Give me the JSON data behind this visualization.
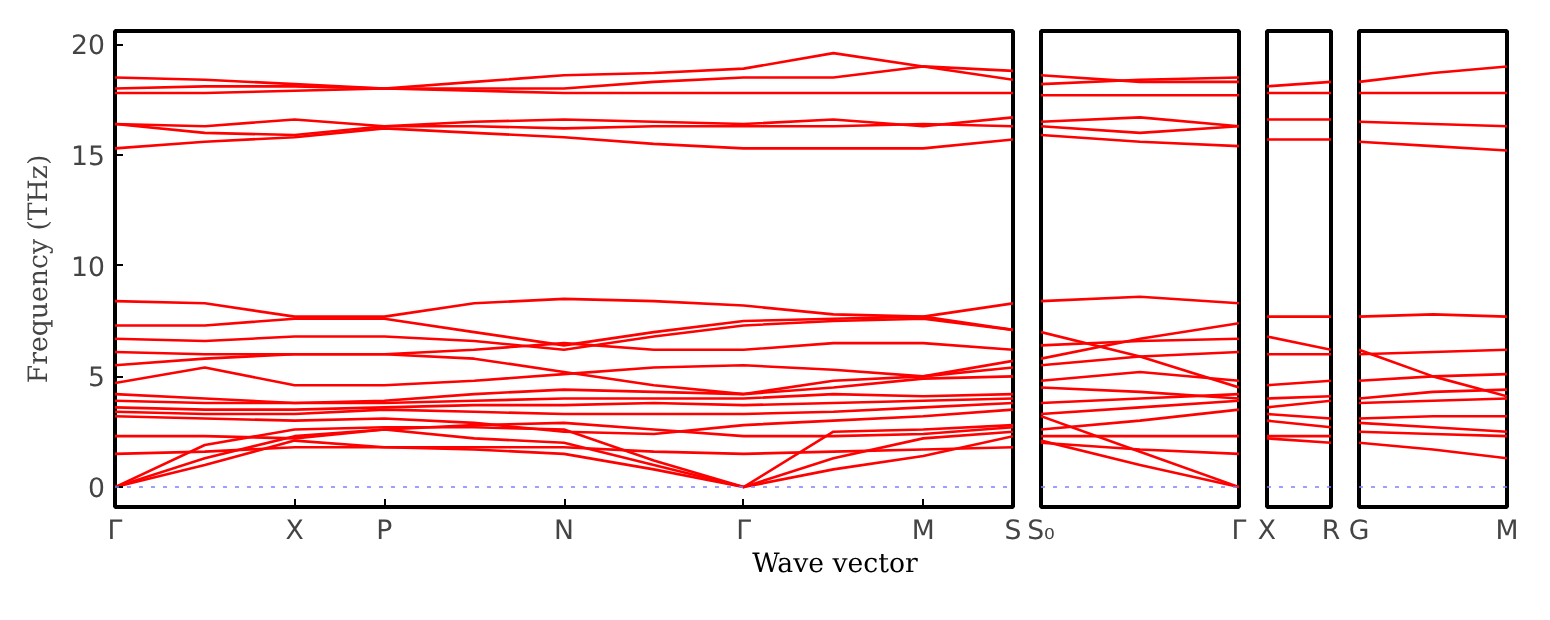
{
  "chart_data": [
    {
      "type": "line",
      "ylabel": "Frequency (THz)",
      "xlabel": "Wave vector",
      "ylim": [
        -0.9,
        20.6
      ],
      "yticks": [
        0,
        5,
        10,
        15,
        20
      ],
      "grid": false,
      "line_style": "solid",
      "ref_lines": [
        {
          "axis": "y",
          "value": 0,
          "label": null,
          "color": "#8080ff",
          "line_style": "dotted"
        }
      ],
      "categories": [
        "Γ",
        null,
        "X",
        "P",
        null,
        "N",
        null,
        "Γ",
        null,
        "M",
        "S"
      ],
      "series": [
        {
          "color": "#ff0000",
          "values": [
            0,
            1.0,
            2.1,
            1.8,
            1.7,
            1.5,
            0.8,
            0,
            0.8,
            1.4,
            2.3
          ]
        },
        {
          "color": "#ff0000",
          "values": [
            0,
            1.3,
            2.3,
            2.6,
            2.2,
            2.0,
            1.0,
            0,
            1.3,
            2.2,
            2.5
          ]
        },
        {
          "color": "#ff0000",
          "values": [
            0,
            1.9,
            2.6,
            2.7,
            2.7,
            2.6,
            1.2,
            0,
            2.5,
            2.6,
            2.8
          ]
        },
        {
          "color": "#ff0000",
          "values": [
            1.5,
            1.6,
            1.8,
            1.8,
            1.8,
            1.8,
            1.6,
            1.5,
            1.6,
            1.7,
            1.8
          ]
        },
        {
          "color": "#ff0000",
          "values": [
            2.3,
            2.3,
            2.2,
            2.6,
            2.8,
            2.9,
            2.6,
            2.3,
            2.3,
            2.4,
            2.7
          ]
        },
        {
          "color": "#ff0000",
          "values": [
            3.2,
            3.1,
            3.0,
            3.1,
            2.9,
            2.5,
            2.4,
            2.8,
            3.0,
            3.2,
            3.5
          ]
        },
        {
          "color": "#ff0000",
          "values": [
            3.4,
            3.3,
            3.3,
            3.5,
            3.4,
            3.3,
            3.3,
            3.3,
            3.4,
            3.6,
            3.8
          ]
        },
        {
          "color": "#ff0000",
          "values": [
            3.6,
            3.5,
            3.5,
            3.6,
            3.7,
            3.7,
            3.8,
            3.7,
            3.8,
            3.9,
            4.0
          ]
        },
        {
          "color": "#ff0000",
          "values": [
            3.9,
            3.8,
            3.8,
            3.8,
            3.9,
            4.0,
            4.0,
            4.0,
            4.2,
            4.1,
            4.2
          ]
        },
        {
          "color": "#ff0000",
          "values": [
            4.2,
            4.0,
            3.8,
            3.9,
            4.2,
            4.4,
            4.3,
            4.2,
            4.5,
            4.9,
            5.0
          ]
        },
        {
          "color": "#ff0000",
          "values": [
            4.7,
            5.4,
            4.6,
            4.6,
            4.8,
            5.1,
            5.4,
            5.5,
            5.3,
            5.0,
            5.4
          ]
        },
        {
          "color": "#ff0000",
          "values": [
            5.5,
            5.8,
            6.0,
            6.0,
            6.2,
            6.5,
            6.2,
            6.2,
            6.5,
            6.5,
            6.2
          ]
        },
        {
          "color": "#ff0000",
          "values": [
            6.1,
            6.0,
            6.0,
            6.0,
            5.8,
            5.2,
            4.6,
            4.2,
            4.8,
            5.0,
            5.7
          ]
        },
        {
          "color": "#ff0000",
          "values": [
            6.7,
            6.6,
            6.8,
            6.8,
            6.6,
            6.2,
            6.8,
            7.3,
            7.5,
            7.6,
            7.1
          ]
        },
        {
          "color": "#ff0000",
          "values": [
            7.3,
            7.3,
            7.6,
            7.6,
            7.0,
            6.4,
            7.0,
            7.5,
            7.6,
            7.7,
            8.3
          ]
        },
        {
          "color": "#ff0000",
          "values": [
            8.4,
            8.3,
            7.7,
            7.7,
            8.3,
            8.5,
            8.4,
            8.2,
            7.8,
            7.7,
            7.1
          ]
        },
        {
          "color": "#ff0000",
          "values": [
            18.5,
            18.4,
            18.2,
            18.0,
            18.3,
            18.6,
            18.7,
            18.9,
            19.6,
            19.0,
            18.8
          ]
        },
        {
          "color": "#ff0000",
          "values": [
            18.0,
            18.1,
            18.1,
            18.0,
            18.0,
            18.0,
            18.3,
            18.5,
            18.5,
            19.0,
            18.4
          ]
        },
        {
          "color": "#ff0000",
          "values": [
            17.8,
            17.8,
            17.9,
            18.0,
            17.9,
            17.8,
            17.8,
            17.8,
            17.8,
            17.8,
            17.8
          ]
        },
        {
          "color": "#ff0000",
          "values": [
            16.4,
            16.3,
            16.6,
            16.3,
            16.5,
            16.6,
            16.5,
            16.4,
            16.6,
            16.3,
            16.7
          ]
        },
        {
          "color": "#ff0000",
          "values": [
            16.4,
            16.0,
            15.9,
            16.3,
            16.3,
            16.2,
            16.3,
            16.3,
            16.3,
            16.4,
            16.3
          ]
        },
        {
          "color": "#ff0000",
          "values": [
            15.3,
            15.6,
            15.8,
            16.2,
            16.0,
            15.8,
            15.5,
            15.3,
            15.3,
            15.3,
            15.7
          ]
        }
      ]
    },
    {
      "type": "line",
      "ylim": [
        -0.9,
        20.6
      ],
      "tick_labels": "x",
      "grid": false,
      "line_style": "solid",
      "ref_lines": [
        {
          "axis": "y",
          "value": 0,
          "label": null,
          "color": "#8080ff",
          "line_style": "dotted"
        }
      ],
      "categories": [
        "S₀",
        null,
        "Γ"
      ],
      "series": [
        {
          "color": "#ff0000",
          "values": [
            8.4,
            8.6,
            8.3
          ]
        },
        {
          "color": "#ff0000",
          "values": [
            7.0,
            5.9,
            4.5
          ]
        },
        {
          "color": "#ff0000",
          "values": [
            6.4,
            6.6,
            6.7
          ]
        },
        {
          "color": "#ff0000",
          "values": [
            5.8,
            6.7,
            7.4
          ]
        },
        {
          "color": "#ff0000",
          "values": [
            5.5,
            5.9,
            6.1
          ]
        },
        {
          "color": "#ff0000",
          "values": [
            4.8,
            5.2,
            4.8
          ]
        },
        {
          "color": "#ff0000",
          "values": [
            4.5,
            4.3,
            4.0
          ]
        },
        {
          "color": "#ff0000",
          "values": [
            3.8,
            4.0,
            4.2
          ]
        },
        {
          "color": "#ff0000",
          "values": [
            3.3,
            3.6,
            3.9
          ]
        },
        {
          "color": "#ff0000",
          "values": [
            2.6,
            3.0,
            3.5
          ]
        },
        {
          "color": "#ff0000",
          "values": [
            2.3,
            2.3,
            2.3
          ]
        },
        {
          "color": "#ff0000",
          "values": [
            2.0,
            1.7,
            1.5
          ]
        },
        {
          "color": "#ff0000",
          "values": [
            2.1,
            1.0,
            0
          ]
        },
        {
          "color": "#ff0000",
          "values": [
            3.2,
            1.6,
            0
          ]
        },
        {
          "color": "#ff0000",
          "values": [
            18.6,
            18.3,
            18.3
          ]
        },
        {
          "color": "#ff0000",
          "values": [
            18.2,
            18.4,
            18.5
          ]
        },
        {
          "color": "#ff0000",
          "values": [
            17.7,
            17.7,
            17.7
          ]
        },
        {
          "color": "#ff0000",
          "values": [
            16.5,
            16.7,
            16.3
          ]
        },
        {
          "color": "#ff0000",
          "values": [
            16.3,
            16.0,
            16.3
          ]
        },
        {
          "color": "#ff0000",
          "values": [
            15.9,
            15.6,
            15.4
          ]
        }
      ]
    },
    {
      "type": "line",
      "ylim": [
        -0.9,
        20.6
      ],
      "tick_labels": "x",
      "grid": false,
      "line_style": "solid",
      "ref_lines": [
        {
          "axis": "y",
          "value": 0,
          "label": null,
          "color": "#8080ff",
          "line_style": "dotted"
        }
      ],
      "categories": [
        "X",
        "R"
      ],
      "series": [
        {
          "color": "#ff0000",
          "values": [
            7.7,
            7.7
          ]
        },
        {
          "color": "#ff0000",
          "values": [
            6.8,
            6.2
          ]
        },
        {
          "color": "#ff0000",
          "values": [
            6.0,
            6.0
          ]
        },
        {
          "color": "#ff0000",
          "values": [
            4.6,
            4.8
          ]
        },
        {
          "color": "#ff0000",
          "values": [
            4.0,
            4.1
          ]
        },
        {
          "color": "#ff0000",
          "values": [
            3.6,
            3.9
          ]
        },
        {
          "color": "#ff0000",
          "values": [
            3.3,
            3.1
          ]
        },
        {
          "color": "#ff0000",
          "values": [
            3.0,
            2.7
          ]
        },
        {
          "color": "#ff0000",
          "values": [
            2.3,
            2.3
          ]
        },
        {
          "color": "#ff0000",
          "values": [
            2.2,
            2.0
          ]
        },
        {
          "color": "#ff0000",
          "values": [
            18.1,
            18.3
          ]
        },
        {
          "color": "#ff0000",
          "values": [
            17.8,
            17.8
          ]
        },
        {
          "color": "#ff0000",
          "values": [
            16.6,
            16.6
          ]
        },
        {
          "color": "#ff0000",
          "values": [
            15.7,
            15.7
          ]
        }
      ]
    },
    {
      "type": "line",
      "ylim": [
        -0.9,
        20.6
      ],
      "tick_labels": "x",
      "grid": false,
      "line_style": "solid",
      "ref_lines": [
        {
          "axis": "y",
          "value": 0,
          "label": null,
          "color": "#8080ff",
          "line_style": "dotted"
        }
      ],
      "categories": [
        "G",
        null,
        "M"
      ],
      "series": [
        {
          "color": "#ff0000",
          "values": [
            7.7,
            7.8,
            7.7
          ]
        },
        {
          "color": "#ff0000",
          "values": [
            6.0,
            6.1,
            6.2
          ]
        },
        {
          "color": "#ff0000",
          "values": [
            6.2,
            5.0,
            4.1
          ]
        },
        {
          "color": "#ff0000",
          "values": [
            4.8,
            5.0,
            5.1
          ]
        },
        {
          "color": "#ff0000",
          "values": [
            4.0,
            4.3,
            4.4
          ]
        },
        {
          "color": "#ff0000",
          "values": [
            3.8,
            3.9,
            4.0
          ]
        },
        {
          "color": "#ff0000",
          "values": [
            3.1,
            3.2,
            3.2
          ]
        },
        {
          "color": "#ff0000",
          "values": [
            2.9,
            2.7,
            2.5
          ]
        },
        {
          "color": "#ff0000",
          "values": [
            2.5,
            2.4,
            2.3
          ]
        },
        {
          "color": "#ff0000",
          "values": [
            2.0,
            1.7,
            1.3
          ]
        },
        {
          "color": "#ff0000",
          "values": [
            18.3,
            18.7,
            19.0
          ]
        },
        {
          "color": "#ff0000",
          "values": [
            17.8,
            17.8,
            17.8
          ]
        },
        {
          "color": "#ff0000",
          "values": [
            16.5,
            16.4,
            16.3
          ]
        },
        {
          "color": "#ff0000",
          "values": [
            15.6,
            15.4,
            15.2
          ]
        }
      ]
    }
  ]
}
